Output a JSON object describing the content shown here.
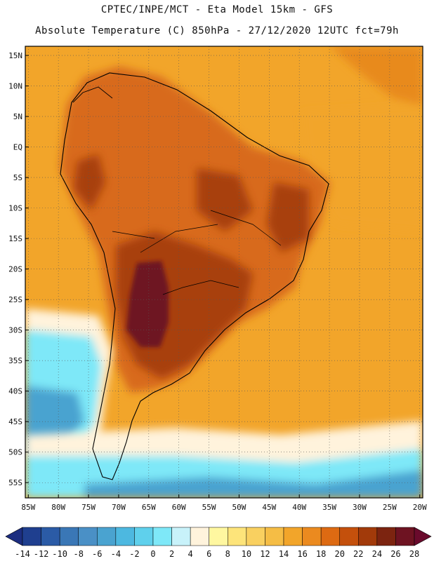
{
  "title_line1": "CPTEC/INPE/MCT -  Eta Model 15km - GFS",
  "title_line2": "Absolute Temperature (C) 850hPa - 27/12/2020 12UTC fct=79h",
  "lat_labels": [
    "15N",
    "10N",
    "5N",
    "EQ",
    "5S",
    "10S",
    "15S",
    "20S",
    "25S",
    "30S",
    "35S",
    "40S",
    "45S",
    "50S",
    "55S"
  ],
  "lat_values": [
    15,
    10,
    5,
    0,
    -5,
    -10,
    -15,
    -20,
    -25,
    -30,
    -35,
    -40,
    -45,
    -50,
    -55
  ],
  "lon_labels": [
    "85W",
    "80W",
    "75W",
    "70W",
    "65W",
    "60W",
    "55W",
    "50W",
    "45W",
    "40W",
    "35W",
    "30W",
    "25W",
    "20W"
  ],
  "lon_values": [
    -85,
    -80,
    -75,
    -70,
    -65,
    -60,
    -55,
    -50,
    -45,
    -40,
    -35,
    -30,
    -25,
    -20
  ],
  "colorbar": {
    "labels": [
      "-14",
      "-12",
      "-10",
      "-8",
      "-6",
      "-4",
      "-2",
      "0",
      "2",
      "4",
      "6",
      "8",
      "10",
      "12",
      "14",
      "16",
      "18",
      "20",
      "22",
      "24",
      "26",
      "28"
    ],
    "colors": [
      "#1f3f8f",
      "#2b5ba6",
      "#3a77b6",
      "#4a90c6",
      "#4aa3d0",
      "#4db8e0",
      "#5fd0ec",
      "#7ee8f8",
      "#c8f2fa",
      "#fff3dc",
      "#fff7a0",
      "#fde47a",
      "#f9d060",
      "#f5bd45",
      "#f2a52a",
      "#eb8a1f",
      "#dd6a12",
      "#c4500c",
      "#a23a0a",
      "#7c2410",
      "#6e1322"
    ],
    "under_color": "#1c2d80",
    "over_color": "#6a0a2c"
  },
  "colors": {
    "ocean_base": "#f2a52a",
    "land_warm": "#d86a1a",
    "land_hot": "#a8400e",
    "core_hot": "#6e1322",
    "cold_sky": "#7ee8f8",
    "cold_deep": "#4aa3d0",
    "pale": "#fff3dc"
  },
  "map": {
    "lon_range": [
      -85.5,
      -19.5
    ],
    "lat_range": [
      16.5,
      -57.5
    ]
  }
}
